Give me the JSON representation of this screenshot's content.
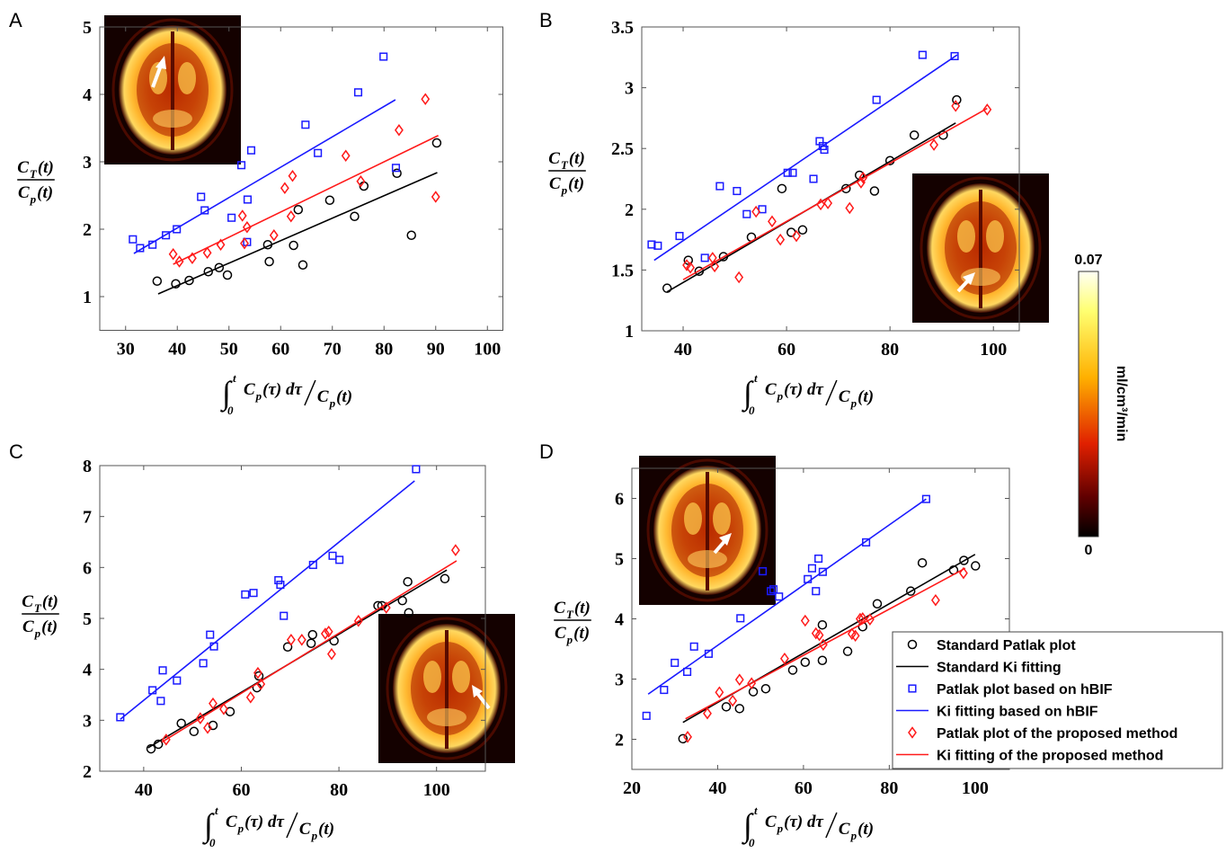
{
  "chart_data": [
    {
      "type": "scatter",
      "label": "A",
      "xlim": [
        25,
        103
      ],
      "ylim": [
        0.5,
        5
      ],
      "xticks": [
        30,
        40,
        50,
        60,
        70,
        80,
        90,
        100
      ],
      "yticks": [
        1,
        2,
        3,
        4,
        5
      ],
      "grid": false,
      "y_label": {
        "numerator": [
          "C",
          "T",
          "(t)"
        ],
        "denominator": [
          "C",
          "p",
          "(t)"
        ]
      },
      "x_label": {
        "integral": "∫",
        "upper": "t",
        "lower": "0",
        "numerator": [
          "C",
          "p",
          "(τ) dτ"
        ],
        "denominator": [
          "C",
          "p",
          "(t)"
        ]
      },
      "series": [
        {
          "mode": "markers",
          "marker": "circle",
          "color": "#000000",
          "x": [
            36.1,
            39.7,
            42.3,
            46,
            48.1,
            49.7,
            57.5,
            57.8,
            62.5,
            63.4,
            64.3,
            69.5,
            74.3,
            76.1,
            82.5,
            85.3,
            90.2
          ],
          "values": [
            1.23,
            1.19,
            1.24,
            1.37,
            1.43,
            1.32,
            1.77,
            1.52,
            1.76,
            2.29,
            1.47,
            2.43,
            2.19,
            2.64,
            2.83,
            1.91,
            3.28
          ]
        },
        {
          "mode": "line",
          "color": "#000000",
          "x": [
            36.3,
            90.3
          ],
          "values": [
            1.04,
            2.84
          ]
        },
        {
          "mode": "markers",
          "marker": "square",
          "color": "#1a1aff",
          "x": [
            31.4,
            32.8,
            35.2,
            37.8,
            39.9,
            44.6,
            45.3,
            50.5,
            52.4,
            53.6,
            54.3,
            53.5,
            64.8,
            67.2,
            75,
            79.9,
            82.3
          ],
          "values": [
            1.85,
            1.72,
            1.77,
            1.91,
            2.0,
            2.48,
            2.28,
            2.17,
            2.95,
            2.44,
            3.17,
            1.81,
            3.55,
            3.13,
            4.03,
            4.56,
            2.91
          ]
        },
        {
          "mode": "line",
          "color": "#1a1aff",
          "x": [
            31.6,
            82.2
          ],
          "values": [
            1.64,
            3.92
          ]
        },
        {
          "mode": "markers",
          "marker": "diamond",
          "color": "#ff1a1a",
          "x": [
            39.2,
            40.4,
            42.9,
            45.8,
            48.4,
            52.6,
            53,
            53.5,
            58.7,
            60.8,
            62,
            62.3,
            72.6,
            75.5,
            82.9,
            88,
            90
          ],
          "values": [
            1.63,
            1.52,
            1.57,
            1.65,
            1.77,
            2.2,
            1.79,
            2.03,
            1.91,
            2.61,
            2.19,
            2.79,
            3.09,
            2.71,
            3.47,
            3.93,
            2.48
          ]
        },
        {
          "mode": "line",
          "color": "#ff1a1a",
          "x": [
            39.2,
            90.5
          ],
          "values": [
            1.48,
            3.39
          ]
        }
      ]
    },
    {
      "type": "scatter",
      "label": "B",
      "xlim": [
        32,
        105
      ],
      "ylim": [
        1,
        3.5
      ],
      "xticks": [
        40,
        60,
        80,
        100
      ],
      "yticks": [
        1,
        1.5,
        2,
        2.5,
        3,
        3.5
      ],
      "grid": false,
      "y_label": {
        "numerator": [
          "C",
          "T",
          "(t)"
        ],
        "denominator": [
          "C",
          "p",
          "(t)"
        ]
      },
      "x_label": {
        "integral": "∫",
        "upper": "t",
        "lower": "0",
        "numerator": [
          "C",
          "p",
          "(τ) dτ"
        ],
        "denominator": [
          "C",
          "p",
          "(t)"
        ]
      },
      "series": [
        {
          "mode": "markers",
          "marker": "circle",
          "color": "#000000",
          "x": [
            36.9,
            41,
            43.1,
            47.8,
            53.2,
            59.1,
            60.9,
            63.1,
            71.5,
            74.1,
            77,
            80,
            84.7,
            90.3,
            92.9
          ],
          "values": [
            1.35,
            1.58,
            1.49,
            1.61,
            1.77,
            2.17,
            1.81,
            1.83,
            2.17,
            2.28,
            2.15,
            2.4,
            2.61,
            2.61,
            2.9
          ]
        },
        {
          "mode": "line",
          "color": "#000000",
          "x": [
            36.9,
            92.7
          ],
          "values": [
            1.32,
            2.71
          ]
        },
        {
          "mode": "markers",
          "marker": "square",
          "color": "#1a1aff",
          "x": [
            33.9,
            35.1,
            39.3,
            44.2,
            47.1,
            50.4,
            52.3,
            55.3,
            60.2,
            61.2,
            65.2,
            66.4,
            67,
            67.3,
            77.4,
            86.3,
            92.5
          ],
          "values": [
            1.71,
            1.7,
            1.78,
            1.6,
            2.19,
            2.15,
            1.96,
            2.0,
            2.3,
            2.3,
            2.25,
            2.56,
            2.52,
            2.49,
            2.9,
            3.27,
            3.26
          ]
        },
        {
          "mode": "line",
          "color": "#1a1aff",
          "x": [
            34.4,
            93
          ],
          "values": [
            1.58,
            3.27
          ]
        },
        {
          "mode": "markers",
          "marker": "diamond",
          "color": "#ff1a1a",
          "x": [
            40.7,
            41.4,
            45.7,
            46.1,
            50.8,
            54.1,
            57.2,
            58.8,
            61.9,
            66.6,
            68,
            72.2,
            74.4,
            74.8,
            88.5,
            92.7,
            98.8
          ],
          "values": [
            1.54,
            1.52,
            1.6,
            1.53,
            1.44,
            1.98,
            1.9,
            1.75,
            1.78,
            2.04,
            2.05,
            2.01,
            2.22,
            2.26,
            2.53,
            2.85,
            2.82
          ]
        },
        {
          "mode": "line",
          "color": "#ff1a1a",
          "x": [
            40,
            98.8
          ],
          "values": [
            1.42,
            2.83
          ]
        }
      ]
    },
    {
      "type": "scatter",
      "label": "C",
      "xlim": [
        31,
        110
      ],
      "ylim": [
        2,
        8
      ],
      "xticks": [
        40,
        60,
        80,
        100
      ],
      "yticks": [
        2,
        3,
        4,
        5,
        6,
        7,
        8
      ],
      "grid": false,
      "y_label": {
        "numerator": [
          "C",
          "T",
          "(t)"
        ],
        "denominator": [
          "C",
          "p",
          "(t)"
        ]
      },
      "x_label": {
        "integral": "∫",
        "upper": "t",
        "lower": "0",
        "numerator": [
          "C",
          "p",
          "(τ) dτ"
        ],
        "denominator": [
          "C",
          "p",
          "(t)"
        ]
      },
      "series": [
        {
          "mode": "markers",
          "marker": "circle",
          "color": "#000000",
          "x": [
            41.5,
            43,
            47.7,
            50.3,
            54.2,
            57.7,
            63.2,
            63.6,
            69.5,
            74.3,
            74.6,
            79,
            88,
            88.8,
            93,
            94.1,
            94.3,
            101.7
          ],
          "values": [
            2.44,
            2.53,
            2.94,
            2.78,
            2.9,
            3.17,
            3.64,
            3.87,
            4.44,
            4.51,
            4.68,
            4.56,
            5.25,
            5.25,
            5.35,
            5.72,
            5.11,
            5.78
          ]
        },
        {
          "mode": "line",
          "color": "#000000",
          "x": [
            40.9,
            102.1
          ],
          "values": [
            2.46,
            5.95
          ]
        },
        {
          "mode": "markers",
          "marker": "square",
          "color": "#1a1aff",
          "x": [
            35.2,
            41.8,
            43.5,
            43.9,
            46.8,
            52.2,
            53.6,
            54.4,
            60.8,
            62.5,
            67.6,
            68,
            68.7,
            74.7,
            78.7,
            80.1,
            95.8
          ],
          "values": [
            3.06,
            3.59,
            3.38,
            3.98,
            3.78,
            4.12,
            4.68,
            4.45,
            5.47,
            5.5,
            5.75,
            5.66,
            5.05,
            6.05,
            6.23,
            6.15,
            7.93
          ]
        },
        {
          "mode": "line",
          "color": "#1a1aff",
          "x": [
            35.2,
            95.5
          ],
          "values": [
            3.02,
            7.7
          ]
        },
        {
          "mode": "markers",
          "marker": "diamond",
          "color": "#ff1a1a",
          "x": [
            44.6,
            51.6,
            53.1,
            54.2,
            56.4,
            61.9,
            63.4,
            64,
            70.2,
            72.4,
            77.2,
            77.9,
            78.5,
            84,
            89.7,
            103.9
          ],
          "values": [
            2.62,
            3.04,
            2.85,
            3.33,
            3.22,
            3.45,
            3.93,
            3.71,
            4.58,
            4.58,
            4.7,
            4.74,
            4.3,
            4.95,
            5.21,
            6.34
          ]
        },
        {
          "mode": "line",
          "color": "#ff1a1a",
          "x": [
            43.7,
            104.1
          ],
          "values": [
            2.57,
            6.13
          ]
        }
      ]
    },
    {
      "type": "scatter",
      "label": "D",
      "xlim": [
        20,
        108
      ],
      "ylim": [
        1.5,
        6.5
      ],
      "xticks": [
        20,
        40,
        60,
        80,
        100
      ],
      "yticks": [
        2,
        3,
        4,
        5,
        6
      ],
      "grid": false,
      "legend": "lower right",
      "y_label": {
        "numerator": [
          "C",
          "T",
          "(t)"
        ],
        "denominator": [
          "C",
          "p",
          "(t)"
        ]
      },
      "x_label": {
        "integral": "∫",
        "upper": "t",
        "lower": "0",
        "numerator": [
          "C",
          "p",
          "(τ) dτ"
        ],
        "denominator": [
          "C",
          "p",
          "(t)"
        ]
      },
      "series": [
        {
          "name": "Standard Patlak plot",
          "mode": "markers",
          "marker": "circle",
          "color": "#000000",
          "x": [
            31.9,
            42,
            45.1,
            48.3,
            51.2,
            57.5,
            60.4,
            64.4,
            64.4,
            70.3,
            73.8,
            77.2,
            85,
            87.7,
            95,
            97.4,
            100.1
          ],
          "values": [
            2.01,
            2.54,
            2.51,
            2.79,
            2.84,
            3.15,
            3.28,
            3.9,
            3.31,
            3.46,
            3.87,
            4.25,
            4.46,
            4.93,
            4.81,
            4.97,
            4.88
          ]
        },
        {
          "name": "Standard Ki fitting",
          "mode": "line",
          "color": "#000000",
          "x": [
            31.9,
            100
          ],
          "values": [
            2.28,
            5.07
          ]
        },
        {
          "name": "Patlak plot based on hBIF",
          "mode": "markers",
          "marker": "square",
          "color": "#1a1aff",
          "x": [
            23.4,
            30,
            27.5,
            32.9,
            34.5,
            37.9,
            45.3,
            50.5,
            52.4,
            53,
            54.3,
            61,
            62,
            62.9,
            63.5,
            64.5,
            74.6,
            88.6
          ],
          "values": [
            2.39,
            3.27,
            2.82,
            3.12,
            3.54,
            3.42,
            4.01,
            4.79,
            4.46,
            4.49,
            4.37,
            4.66,
            4.84,
            4.46,
            5.0,
            4.78,
            5.27,
            5.99
          ]
        },
        {
          "name": "Ki fitting based on hBIF",
          "mode": "line",
          "color": "#1a1aff",
          "x": [
            23.8,
            88.6
          ],
          "values": [
            2.75,
            5.99
          ]
        },
        {
          "name": "Patlak plot of the proposed method",
          "mode": "markers",
          "marker": "diamond",
          "color": "#ff1a1a",
          "x": [
            33,
            37.6,
            40.4,
            43.5,
            45.1,
            47.9,
            55.6,
            60.4,
            62.9,
            63.7,
            64.6,
            71.3,
            72.1,
            73.2,
            73.8,
            75.5,
            90.8,
            97.3
          ],
          "values": [
            2.04,
            2.43,
            2.78,
            2.64,
            2.99,
            2.93,
            3.34,
            3.97,
            3.76,
            3.73,
            3.57,
            3.75,
            3.72,
            4.0,
            4.01,
            3.99,
            4.31,
            4.76
          ]
        },
        {
          "name": "Ki fitting of the proposed method",
          "mode": "line",
          "color": "#ff1a1a",
          "x": [
            32.5,
            97.7
          ],
          "values": [
            2.34,
            4.84
          ]
        }
      ]
    }
  ],
  "colorbar": {
    "range": [
      0,
      0.07
    ],
    "ticks": [
      0,
      0.07
    ],
    "label": "ml/cm³/min"
  }
}
